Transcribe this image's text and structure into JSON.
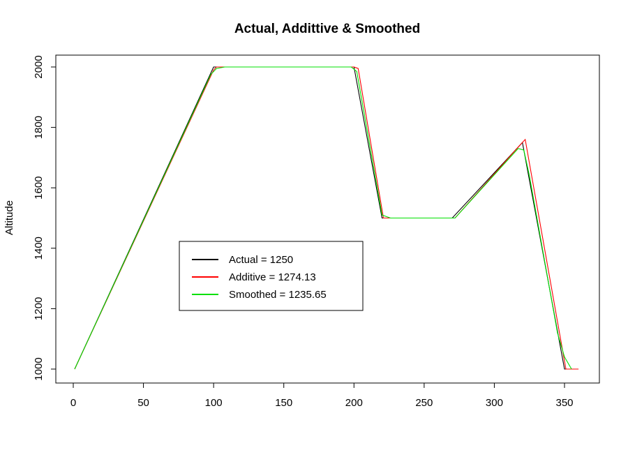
{
  "chart_data": {
    "type": "line",
    "title": "Actual, Addittive & Smoothed",
    "xlabel": "",
    "ylabel": "Altitude",
    "xlim": [
      0,
      360
    ],
    "ylim": [
      1000,
      2000
    ],
    "x_ticks": [
      0,
      50,
      100,
      150,
      200,
      250,
      300,
      350
    ],
    "y_ticks": [
      1000,
      1200,
      1400,
      1600,
      1800,
      2000
    ],
    "grid": false,
    "legend_position": "center-left",
    "legend": [
      {
        "label": "Actual = 1250",
        "color": "#000000"
      },
      {
        "label": "Additive = 1274.13",
        "color": "#ff0000"
      },
      {
        "label": "Smoothed = 1235.65",
        "color": "#00e000"
      }
    ],
    "series": [
      {
        "color": "#000000",
        "points": [
          [
            1,
            1000
          ],
          [
            100,
            2000
          ],
          [
            200,
            2000
          ],
          [
            220,
            1500
          ],
          [
            270,
            1500
          ],
          [
            320,
            1750
          ],
          [
            350,
            1000
          ],
          [
            355,
            1000
          ]
        ]
      },
      {
        "color": "#ff0000",
        "points": [
          [
            1,
            1000
          ],
          [
            25,
            1240
          ],
          [
            26,
            1250
          ],
          [
            100,
            1990
          ],
          [
            102,
            2000
          ],
          [
            200,
            2000
          ],
          [
            203,
            1995
          ],
          [
            221,
            1500
          ],
          [
            223,
            1500
          ],
          [
            272,
            1500
          ],
          [
            318,
            1740
          ],
          [
            322,
            1760
          ],
          [
            351,
            1000
          ],
          [
            360,
            1000
          ]
        ]
      },
      {
        "color": "#00e000",
        "points": [
          [
            1,
            1000
          ],
          [
            98,
            1975
          ],
          [
            102,
            1995
          ],
          [
            108,
            2000
          ],
          [
            198,
            2000
          ],
          [
            202,
            1985
          ],
          [
            220,
            1510
          ],
          [
            226,
            1500
          ],
          [
            272,
            1500
          ],
          [
            317,
            1730
          ],
          [
            321,
            1725
          ],
          [
            325,
            1640
          ],
          [
            345,
            1120
          ],
          [
            350,
            1040
          ],
          [
            355,
            1000
          ]
        ]
      }
    ]
  }
}
